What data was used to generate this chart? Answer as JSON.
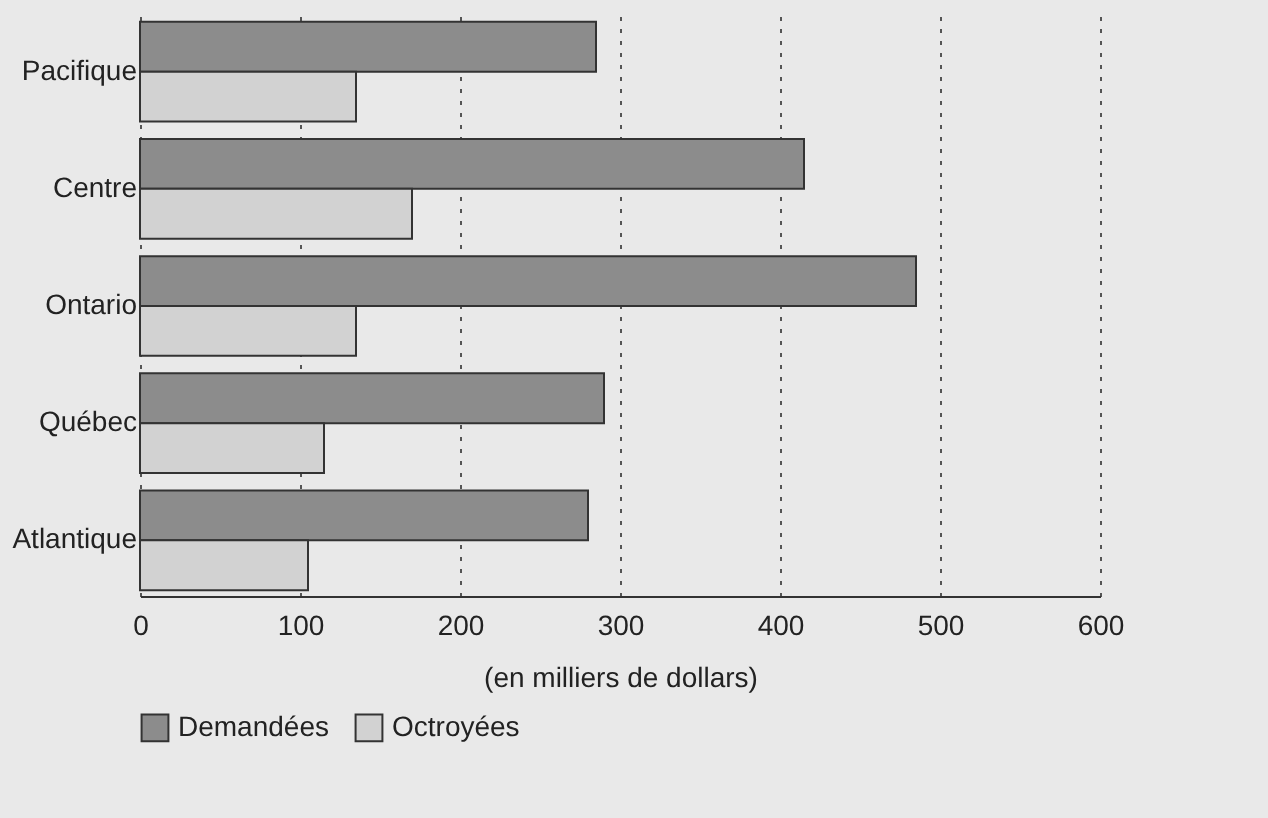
{
  "chart_data": {
    "type": "bar",
    "orientation": "horizontal",
    "xlabel": "(en milliers de dollars)",
    "categories": [
      "Pacifique",
      "Centre",
      "Ontario",
      "Québec",
      "Atlantique"
    ],
    "series": [
      {
        "name": "Demandées",
        "color": "#8c8c8c",
        "values": [
          285,
          415,
          485,
          290,
          280
        ]
      },
      {
        "name": "Octroyées",
        "color": "#d2d2d2",
        "values": [
          135,
          170,
          135,
          115,
          105
        ]
      }
    ],
    "xlim": [
      0,
      600
    ],
    "xticks": [
      0,
      100,
      200,
      300,
      400,
      500,
      600
    ],
    "grid": "x",
    "legend": "bottom"
  }
}
